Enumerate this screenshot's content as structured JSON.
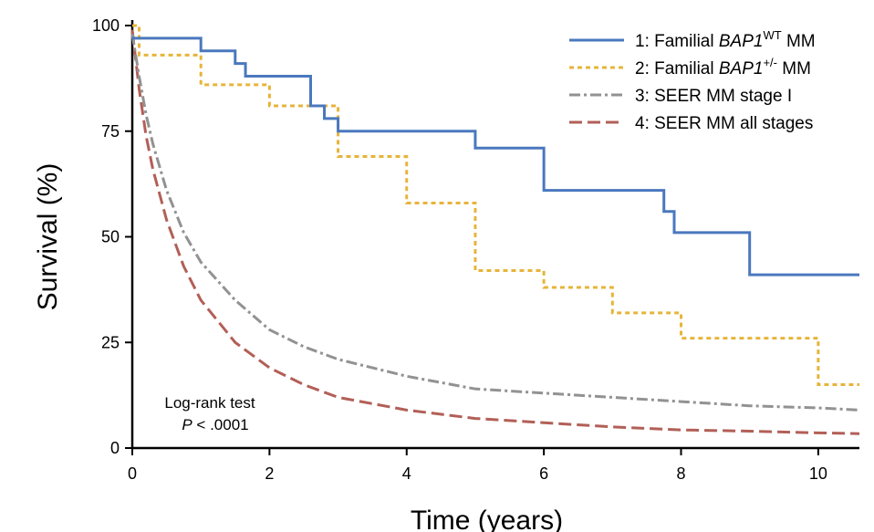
{
  "chart_data": {
    "type": "line",
    "subtype": "kaplan-meier step",
    "xlabel": "Time (years)",
    "ylabel": "Survival (%)",
    "xlim": [
      0,
      10.6
    ],
    "ylim": [
      0,
      100
    ],
    "xticks": [
      0,
      2,
      4,
      6,
      8,
      10
    ],
    "yticks": [
      0,
      25,
      50,
      75,
      100
    ],
    "grid": false,
    "legend_position": "top-right",
    "annotation": {
      "line1": "Log-rank test",
      "line2_italic": "P",
      "line2_rest": " < .0001"
    },
    "series": [
      {
        "legend_prefix": "1: Familial ",
        "legend_gene": "BAP1",
        "legend_sup": "WT",
        "legend_suffix": " MM",
        "color": "#4a78be",
        "style": "solid",
        "step": true,
        "x": [
          0,
          1,
          1.5,
          1.65,
          2.6,
          2.8,
          3.0,
          5.0,
          6.0,
          7.75,
          7.9,
          9.0,
          10.6
        ],
        "y": [
          97,
          94,
          91,
          88,
          81,
          78,
          75,
          71,
          61,
          56,
          51,
          41,
          41
        ]
      },
      {
        "legend_prefix": "2: Familial ",
        "legend_gene": "BAP1",
        "legend_sup": "+/-",
        "legend_suffix": " MM",
        "color": "#e7b43a",
        "style": "dotted",
        "step": true,
        "x": [
          0,
          0.1,
          1.0,
          2.0,
          3.0,
          4.0,
          5.0,
          6.0,
          7.0,
          8.0,
          10.0,
          10.6
        ],
        "y": [
          100,
          93,
          86,
          81,
          69,
          58,
          42,
          38,
          32,
          26,
          15,
          15
        ]
      },
      {
        "legend_prefix": "3: SEER MM stage I",
        "color": "#929292",
        "style": "dashdot",
        "step": false,
        "x": [
          0,
          0.1,
          0.2,
          0.3,
          0.5,
          0.75,
          1.0,
          1.5,
          2.0,
          2.5,
          3.0,
          4.0,
          5.0,
          6.0,
          7.0,
          8.0,
          9.0,
          10.0,
          10.6
        ],
        "y": [
          98,
          88,
          79,
          72,
          61,
          51,
          44,
          35,
          28,
          24,
          21,
          17,
          14,
          13,
          12,
          11,
          10,
          9.5,
          9
        ]
      },
      {
        "legend_prefix": "4: SEER MM all stages",
        "color": "#b25f57",
        "style": "dashed",
        "step": false,
        "x": [
          0,
          0.1,
          0.2,
          0.3,
          0.5,
          0.75,
          1.0,
          1.5,
          2.0,
          2.5,
          3.0,
          4.0,
          5.0,
          6.0,
          7.0,
          8.0,
          9.0,
          10.0,
          10.6
        ],
        "y": [
          99,
          85,
          74,
          66,
          54,
          43,
          35,
          25,
          19,
          15,
          12,
          9,
          7,
          6,
          5,
          4.3,
          4,
          3.6,
          3.4
        ]
      }
    ]
  }
}
